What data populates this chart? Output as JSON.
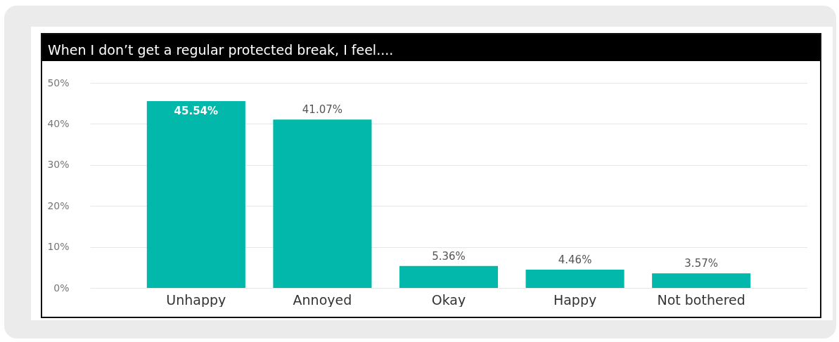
{
  "chart_data": {
    "type": "bar",
    "title": "When I don’t get a regular protected break, I feel....",
    "categories": [
      "Unhappy",
      "Annoyed",
      "Okay",
      "Happy",
      "Not bothered"
    ],
    "values": [
      45.54,
      41.07,
      5.36,
      4.46,
      3.57
    ],
    "value_labels": [
      "45.54%",
      "41.07%",
      "5.36%",
      "4.46%",
      "3.57%"
    ],
    "color": "#01b8aa",
    "ylim": [
      0,
      50
    ],
    "yticks": [
      {
        "value": 0,
        "label": "0%"
      },
      {
        "value": 10,
        "label": "10%"
      },
      {
        "value": 20,
        "label": "20%"
      },
      {
        "value": 30,
        "label": "30%"
      },
      {
        "value": 40,
        "label": "40%"
      },
      {
        "value": 50,
        "label": "50%"
      }
    ],
    "grid": "y"
  }
}
